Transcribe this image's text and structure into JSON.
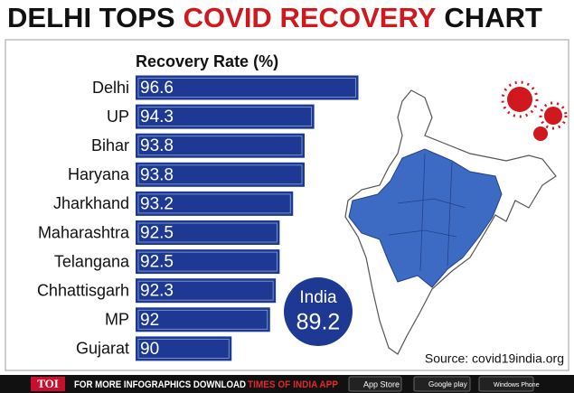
{
  "chart_data": {
    "type": "bar",
    "orientation": "horizontal",
    "title": [
      "DELHI TOPS",
      "COVID RECOVERY",
      "CHART"
    ],
    "title_colors": [
      "#111111",
      "#d0191f",
      "#111111"
    ],
    "subtitle": "Recovery Rate (%)",
    "categories": [
      "Delhi",
      "UP",
      "Bihar",
      "Haryana",
      "Jharkhand",
      "Maharashtra",
      "Telangana",
      "Chhattisgarh",
      "MP",
      "Gujarat"
    ],
    "values": [
      96.6,
      94.3,
      93.8,
      93.8,
      93.2,
      92.5,
      92.5,
      92.3,
      92,
      90
    ],
    "color": "#1d3994",
    "xlim": [
      85,
      97
    ],
    "annotation": {
      "label": "India",
      "value": 89.2
    },
    "source": "Source: covid19india.org"
  },
  "footer": {
    "brand": "TOI",
    "text": "FOR MORE  INFOGRAPHICS DOWNLOAD",
    "app": "TIMES OF INDIA  APP",
    "stores": [
      "App Store",
      "Google play",
      "Windows Phone"
    ]
  }
}
